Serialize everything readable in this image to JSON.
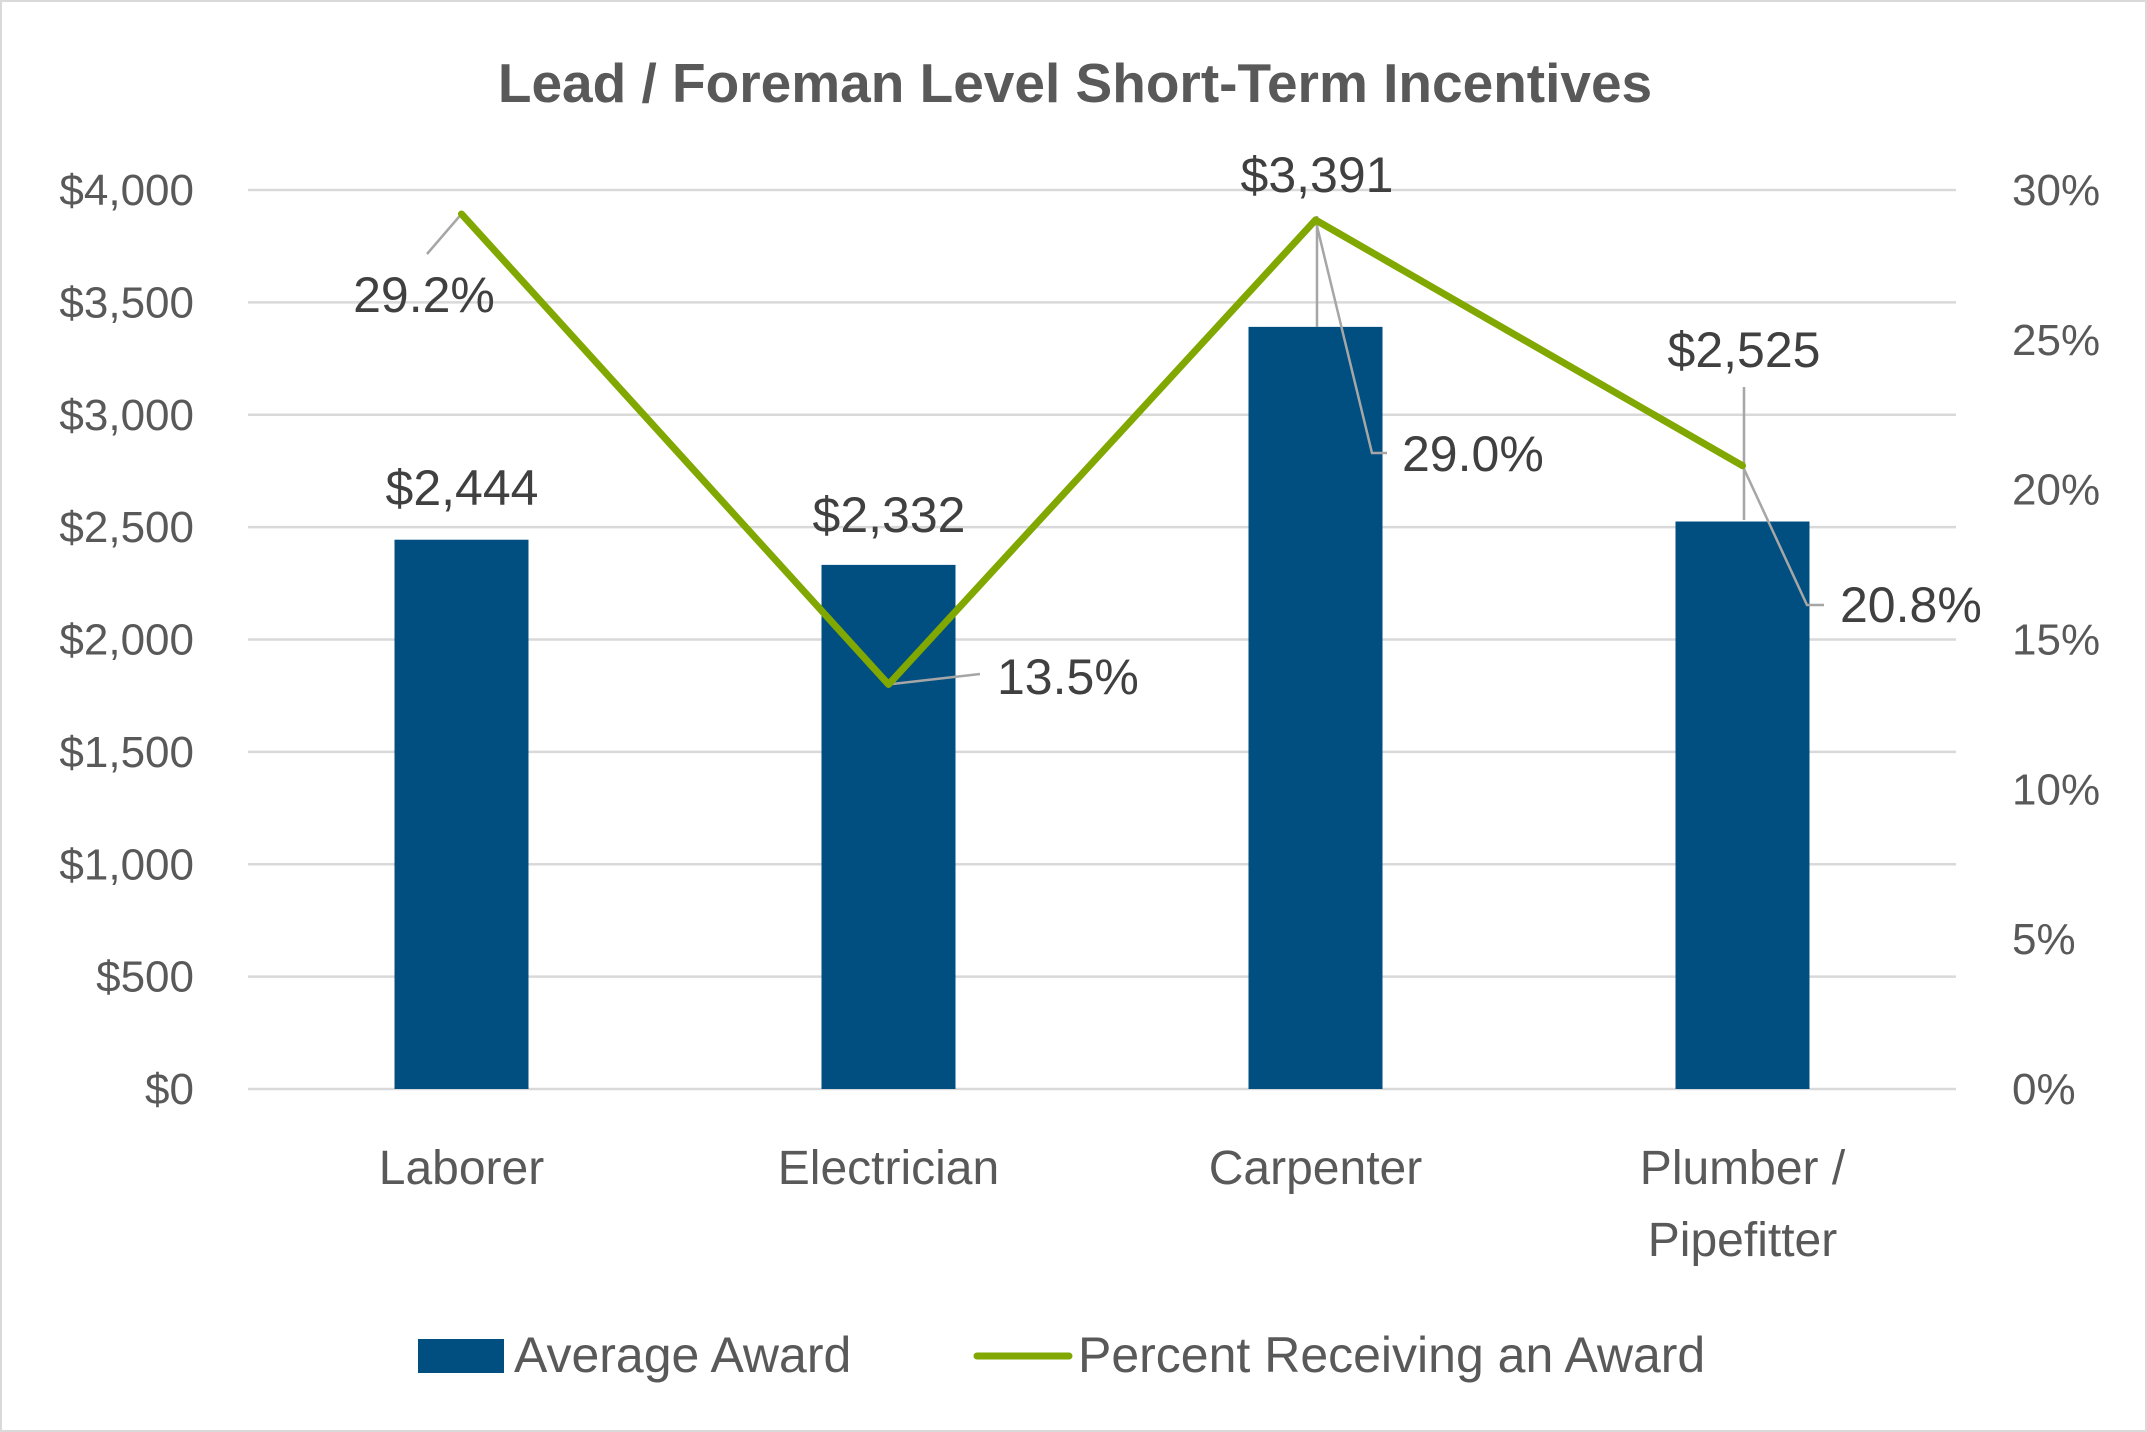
{
  "chart_data": {
    "type": "bar+line",
    "title": "Lead / Foreman Level Short-Term Incentives",
    "categories": [
      "Laborer",
      "Electrician",
      "Carpenter",
      "Plumber / Pipefitter"
    ],
    "category_lines": [
      [
        "Laborer"
      ],
      [
        "Electrician"
      ],
      [
        "Carpenter"
      ],
      [
        "Plumber /",
        "Pipefitter"
      ]
    ],
    "series": [
      {
        "name": "Average Award",
        "type": "bar",
        "axis": "left",
        "color": "#004f80",
        "values": [
          2444,
          2332,
          3391,
          2525
        ],
        "labels": [
          "$2,444",
          "$2,332",
          "$3,391",
          "$2,525"
        ]
      },
      {
        "name": "Percent Receiving an Award",
        "type": "line",
        "axis": "right",
        "color": "#80a800",
        "values": [
          29.2,
          13.5,
          29.0,
          20.8
        ],
        "labels": [
          "29.2%",
          "13.5%",
          "29.0%",
          "20.8%"
        ]
      }
    ],
    "left_axis": {
      "ylim": [
        0,
        4000
      ],
      "ticks": [
        "$0",
        "$500",
        "$1,000",
        "$1,500",
        "$2,000",
        "$2,500",
        "$3,000",
        "$3,500",
        "$4,000"
      ]
    },
    "right_axis": {
      "ylim": [
        0,
        30
      ],
      "ticks": [
        "0%",
        "5%",
        "10%",
        "15%",
        "20%",
        "25%",
        "30%"
      ]
    },
    "grid": true,
    "legend": "bottom"
  }
}
